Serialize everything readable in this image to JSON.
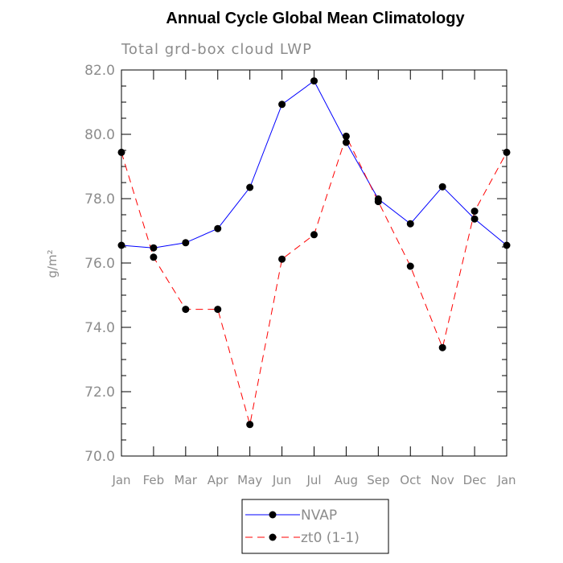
{
  "chart_data": {
    "type": "line",
    "title": "Annual Cycle Global Mean Climatology",
    "subtitle": "Total grd-box cloud LWP",
    "ylabel": "g/m²",
    "xlabel": "",
    "ylim": [
      70.0,
      82.0
    ],
    "yticks": [
      "70.0",
      "72.0",
      "74.0",
      "76.0",
      "78.0",
      "80.0",
      "82.0"
    ],
    "categories": [
      "Jan",
      "Feb",
      "Mar",
      "Apr",
      "May",
      "Jun",
      "Jul",
      "Aug",
      "Sep",
      "Oct",
      "Nov",
      "Dec",
      "Jan"
    ],
    "series": [
      {
        "name": "NVAP",
        "color": "#0000ff",
        "dash": "solid",
        "values": [
          76.55,
          76.47,
          76.63,
          77.07,
          78.35,
          80.93,
          81.66,
          79.75,
          77.99,
          77.22,
          78.37,
          77.37,
          76.55
        ]
      },
      {
        "name": "zt0 (1-1)",
        "color": "#ff0000",
        "dash": "dashed",
        "values": [
          79.44,
          76.18,
          74.56,
          74.56,
          70.98,
          76.12,
          76.88,
          79.94,
          77.91,
          75.9,
          73.37,
          77.61,
          79.44
        ]
      }
    ],
    "legend": "bottom-center",
    "grid": false
  }
}
